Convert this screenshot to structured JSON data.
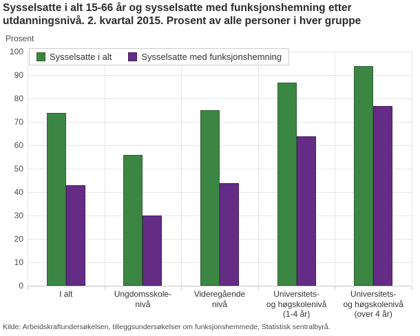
{
  "title": "Sysselsatte i alt 15-66 år og sysselsatte med funksjonshemning etter\nutdanningsnivå. 2. kvartal 2015. Prosent av alle personer i hver gruppe",
  "footer": "Kilde: Arbeidskraftundersøkelsen, tilleggsundersøkelser om funksjonshemmede, Statistisk sentralbyrå.",
  "colors": {
    "series1": "#3c8644",
    "series1_border": "#2c5f31",
    "series2": "#652c86",
    "series2_border": "#451d5e",
    "grid": "#e6e6e6",
    "axis": "#c6c6c6",
    "text": "#333333"
  },
  "chart_data": {
    "type": "bar",
    "title": "Sysselsatte i alt 15-66 år og sysselsatte med funksjonshemning etter utdanningsnivå. 2. kvartal 2015. Prosent av alle personer i hver gruppe",
    "ylabel": "Prosent",
    "xlabel": "",
    "ylim": [
      0,
      100
    ],
    "ytick_step": 10,
    "grid": true,
    "legend_position": "top-left",
    "categories": [
      "I alt",
      "Ungdomsskole-\nnivå",
      "Videregående\nnivå",
      "Universitets-\nog høgskolenivå\n(1-4 år)",
      "Universitets-\nog høgskolenivå\n(over 4 år)"
    ],
    "series": [
      {
        "name": "Sysselsatte i alt",
        "color": "#3c8644",
        "values": [
          74,
          56,
          75,
          87,
          94
        ]
      },
      {
        "name": "Sysselsatte med funksjonshemning",
        "color": "#652c86",
        "values": [
          43,
          30,
          44,
          64,
          77
        ]
      }
    ]
  }
}
